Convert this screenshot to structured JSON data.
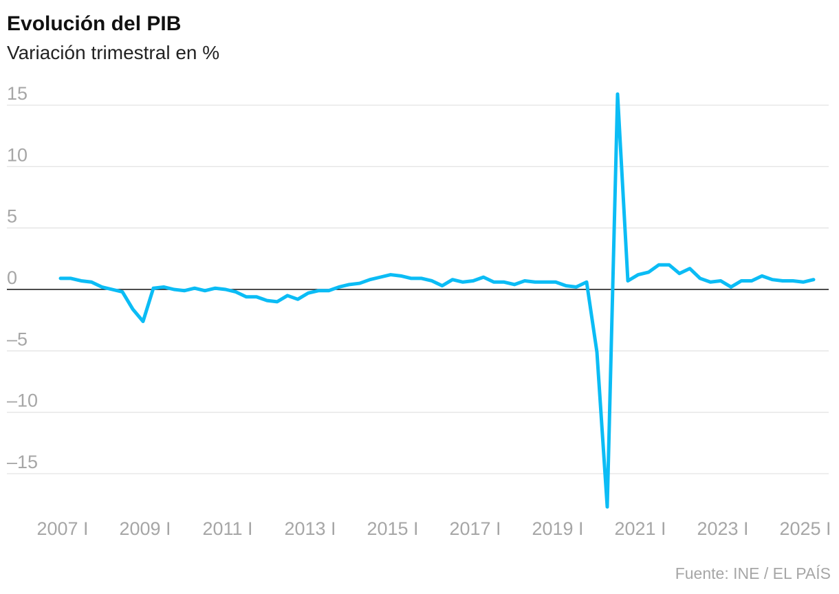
{
  "chart_data": {
    "type": "line",
    "title": "Evolución del PIB",
    "subtitle": "Variación trimestral en %",
    "source": "Fuente: INE / EL PAÍS",
    "categories": [
      "2007 I",
      null,
      null,
      null,
      null,
      null,
      null,
      null,
      "2009 I",
      null,
      null,
      null,
      null,
      null,
      null,
      null,
      "2011 I",
      null,
      null,
      null,
      null,
      null,
      null,
      null,
      "2013 I",
      null,
      null,
      null,
      null,
      null,
      null,
      null,
      "2015 I",
      null,
      null,
      null,
      null,
      null,
      null,
      null,
      "2017 I",
      null,
      null,
      null,
      null,
      null,
      null,
      null,
      "2019 I",
      null,
      null,
      null,
      null,
      null,
      null,
      null,
      "2021 I",
      null,
      null,
      null,
      null,
      null,
      null,
      null,
      "2023 I",
      null,
      null,
      null,
      null,
      null,
      null,
      null,
      "2025 I",
      null
    ],
    "values": [
      0.9,
      0.9,
      0.7,
      0.6,
      0.2,
      0.0,
      -0.2,
      -1.6,
      -2.6,
      0.1,
      0.2,
      0.0,
      -0.1,
      0.1,
      -0.1,
      0.1,
      0.0,
      -0.2,
      -0.6,
      -0.6,
      -0.9,
      -1.0,
      -0.5,
      -0.8,
      -0.3,
      -0.1,
      -0.1,
      0.2,
      0.4,
      0.5,
      0.8,
      1.0,
      1.2,
      1.1,
      0.9,
      0.9,
      0.7,
      0.3,
      0.8,
      0.6,
      0.7,
      1.0,
      0.6,
      0.6,
      0.4,
      0.7,
      0.6,
      0.6,
      0.6,
      0.3,
      0.2,
      0.6,
      -5.1,
      -17.7,
      15.9,
      0.7,
      1.2,
      1.4,
      2.0,
      2.0,
      1.3,
      1.7,
      0.9,
      0.6,
      0.7,
      0.2,
      0.7,
      0.7,
      1.1,
      0.8,
      0.7,
      0.7,
      0.6,
      0.8
    ],
    "color": "#0bbcf5",
    "ylim": [
      -18,
      16.5
    ],
    "yticks": [
      15,
      10,
      5,
      0,
      {
        "value": -5,
        "label": "–5"
      },
      {
        "value": -10,
        "label": "–10"
      },
      {
        "value": -15,
        "label": "–15"
      }
    ],
    "grid": true
  }
}
